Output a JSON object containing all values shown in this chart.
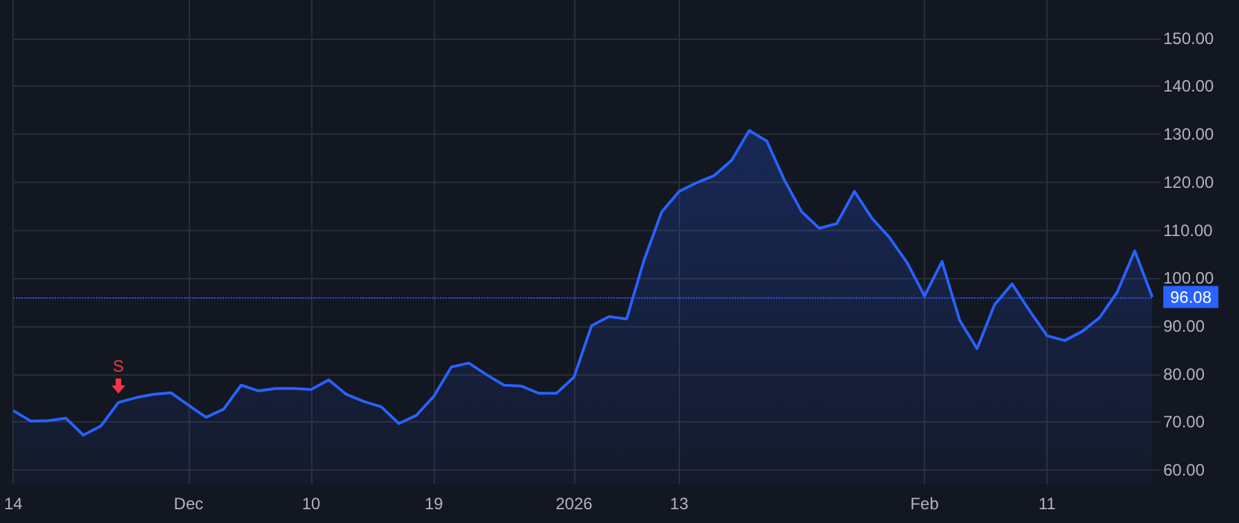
{
  "chart_data": {
    "type": "area",
    "categories": [
      "14",
      null,
      null,
      null,
      null,
      null,
      null,
      null,
      null,
      null,
      "Dec",
      null,
      null,
      null,
      null,
      null,
      null,
      "10",
      null,
      null,
      null,
      null,
      null,
      null,
      "19",
      null,
      null,
      null,
      null,
      null,
      null,
      null,
      "2026",
      null,
      null,
      null,
      null,
      null,
      "13",
      null,
      null,
      null,
      null,
      null,
      null,
      null,
      null,
      null,
      null,
      null,
      null,
      null,
      "Feb",
      null,
      null,
      null,
      null,
      null,
      null,
      "11",
      null,
      null,
      null,
      null,
      null,
      null
    ],
    "series": [
      {
        "color": "#2962ff",
        "values": [
          72.4,
          70.2,
          70.3,
          70.8,
          67.3,
          69.2,
          74.1,
          75.1,
          75.8,
          76.1,
          73.5,
          71.0,
          72.7,
          77.7,
          76.5,
          77.0,
          77.0,
          76.8,
          78.8,
          75.8,
          74.3,
          73.2,
          69.7,
          71.4,
          75.4,
          81.5,
          82.3,
          79.9,
          77.7,
          77.5,
          76.0,
          76.0,
          79.4,
          90.1,
          92.0,
          91.5,
          103.8,
          113.8,
          118.1,
          119.9,
          121.4,
          124.6,
          130.8,
          128.6,
          120.5,
          113.8,
          110.4,
          111.4,
          118.1,
          112.5,
          108.5,
          103.3,
          96.3,
          103.5,
          91.3,
          85.3,
          94.5,
          98.8,
          93.2,
          88.0,
          87.0,
          88.9,
          91.8,
          97.1,
          105.7,
          96.08
        ]
      }
    ],
    "ylim": [
      57,
      158
    ],
    "yticks": [
      {
        "value": 60,
        "label": "60.00"
      },
      {
        "value": 70,
        "label": "70.00"
      },
      {
        "value": 80,
        "label": "80.00"
      },
      {
        "value": 90,
        "label": "90.00"
      },
      {
        "value": 100,
        "label": "100.00"
      },
      {
        "value": 110,
        "label": "110.00"
      },
      {
        "value": 120,
        "label": "120.00"
      },
      {
        "value": 130,
        "label": "130.00"
      },
      {
        "value": 140,
        "label": "140.00"
      },
      {
        "value": 150,
        "label": "150.00"
      }
    ],
    "ref_lines": [
      {
        "axis": "y",
        "value": 96.08,
        "label": "96.08",
        "color": "#2962ff",
        "line_style": "dotted"
      }
    ],
    "annotations": [
      {
        "text": "S",
        "y": 74.1
      }
    ],
    "grid": true,
    "marker": "none",
    "line_style": "solid"
  }
}
